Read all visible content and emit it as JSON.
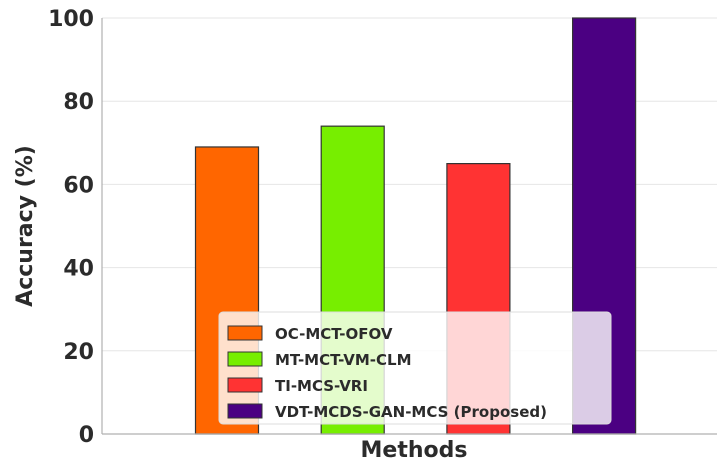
{
  "chart_data": {
    "type": "bar",
    "title": "",
    "xlabel": "Methods",
    "ylabel": "Accuracy (%)",
    "ylim": [
      0,
      100
    ],
    "yticks": [
      0,
      20,
      40,
      60,
      80,
      100
    ],
    "grid": "horizontal",
    "legend_position": "bottom-center",
    "categories": [
      "OC-MCT-OFOV",
      "MT-MCT-VM-CLM",
      "TI-MCS-VRI",
      "VDT-MCDS-GAN-MCS (Proposed)"
    ],
    "values": [
      69,
      74,
      65,
      100
    ],
    "colors": [
      "#ff6600",
      "#77ee00",
      "#ff3333",
      "#4b0082"
    ],
    "legend": [
      {
        "label": "OC-MCT-OFOV",
        "color": "#ff6600"
      },
      {
        "label": "MT-MCT-VM-CLM",
        "color": "#77ee00"
      },
      {
        "label": "TI-MCS-VRI",
        "color": "#ff3333"
      },
      {
        "label": "VDT-MCDS-GAN-MCS (Proposed)",
        "color": "#4b0082"
      }
    ],
    "axis_color": "#b0b0b0",
    "grid_color": "#e6e6e6",
    "edge_color": "#333333"
  }
}
